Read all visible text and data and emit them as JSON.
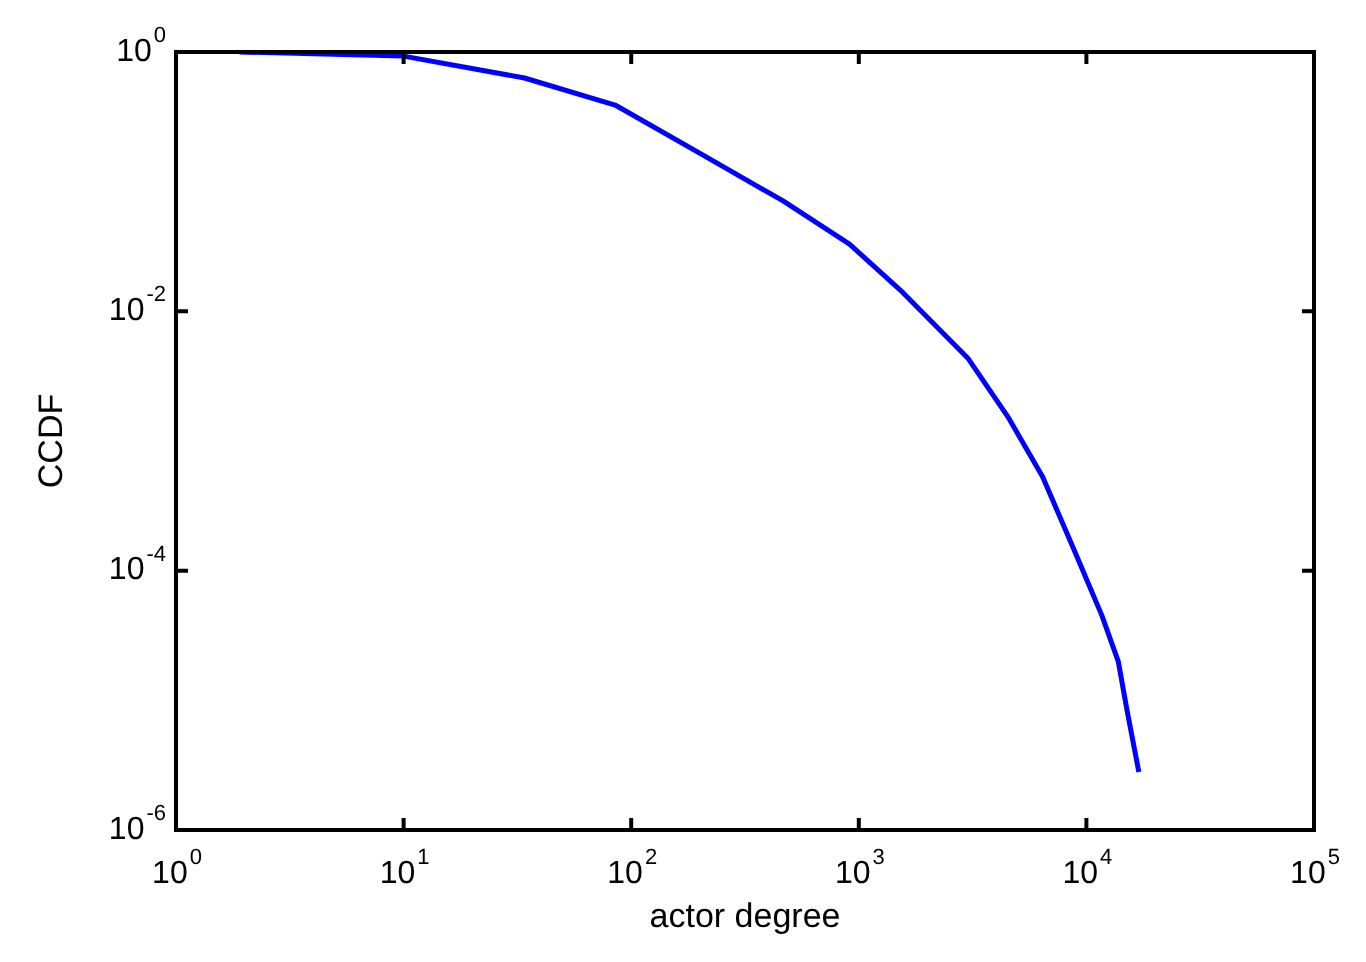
{
  "chart_data": {
    "type": "line",
    "xlabel": "actor degree",
    "ylabel": "CCDF",
    "log": "xy",
    "grid": false,
    "legend": false,
    "marker": "none",
    "line_style": "solid",
    "xlim": [
      1,
      100000
    ],
    "ylim": [
      1e-06,
      1
    ],
    "xticks": [
      {
        "value": 1,
        "label": "10$^{0}$"
      },
      {
        "value": 10,
        "label": "10$^{1}$"
      },
      {
        "value": 100,
        "label": "10$^{2}$"
      },
      {
        "value": 1000,
        "label": "10$^{3}$"
      },
      {
        "value": 10000,
        "label": "10$^{4}$"
      },
      {
        "value": 100000,
        "label": "10$^{5}$"
      }
    ],
    "yticks": [
      {
        "value": 1e-06,
        "label": "10$^{-6}$"
      },
      {
        "value": 0.0001,
        "label": "10$^{-4}$"
      },
      {
        "value": 0.01,
        "label": "10$^{-2}$"
      },
      {
        "value": 1,
        "label": "10$^{0}$"
      }
    ],
    "series": [
      {
        "color": "#0000ff",
        "x": [
          1.9,
          10,
          34,
          85,
          207,
          465,
          910,
          1560,
          3030,
          4560,
          6420,
          8900,
          11700,
          13800,
          15100,
          17000
        ],
        "values": [
          1,
          0.93,
          0.63,
          0.39,
          0.16,
          0.071,
          0.033,
          0.014,
          0.0043,
          0.0015,
          0.00053,
          0.00014,
          4.5e-05,
          2e-05,
          8.3e-06,
          2.8e-06
        ]
      }
    ]
  }
}
